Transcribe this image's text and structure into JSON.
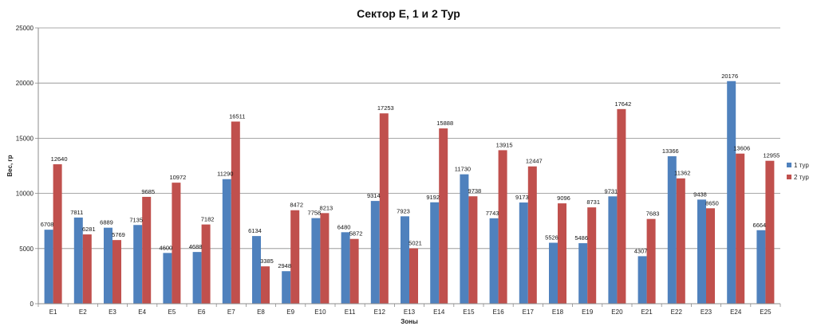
{
  "chart_data": {
    "type": "bar",
    "title": "Сектор  Е, 1 и 2 Тур",
    "xlabel": "Зоны",
    "ylabel": "Вес, гр",
    "ylim": [
      0,
      25000
    ],
    "yticks": [
      0,
      5000,
      10000,
      15000,
      20000,
      25000
    ],
    "grid": true,
    "legend_position": "right",
    "categories": [
      "E1",
      "E2",
      "E3",
      "E4",
      "E5",
      "E6",
      "E7",
      "E8",
      "E9",
      "E10",
      "E11",
      "E12",
      "E13",
      "E14",
      "E15",
      "E16",
      "E17",
      "E18",
      "E19",
      "E20",
      "E21",
      "E22",
      "E23",
      "E24",
      "E25"
    ],
    "series": [
      {
        "name": "1 тур",
        "color": "#4f81bd",
        "values": [
          6708,
          7811,
          6889,
          7135,
          4600,
          4688,
          11290,
          6134,
          2948,
          7758,
          6480,
          9314,
          7923,
          9192,
          11730,
          7743,
          9173,
          5526,
          5486,
          9731,
          4307,
          13366,
          9438,
          20176,
          6664
        ]
      },
      {
        "name": "2 тур",
        "color": "#c0504d",
        "values": [
          12640,
          6281,
          5769,
          9685,
          10972,
          7182,
          16511,
          3385,
          8472,
          8213,
          5872,
          17253,
          5021,
          15888,
          9738,
          13915,
          12447,
          9096,
          8731,
          17642,
          7683,
          11362,
          8650,
          13606,
          12955
        ]
      }
    ]
  }
}
